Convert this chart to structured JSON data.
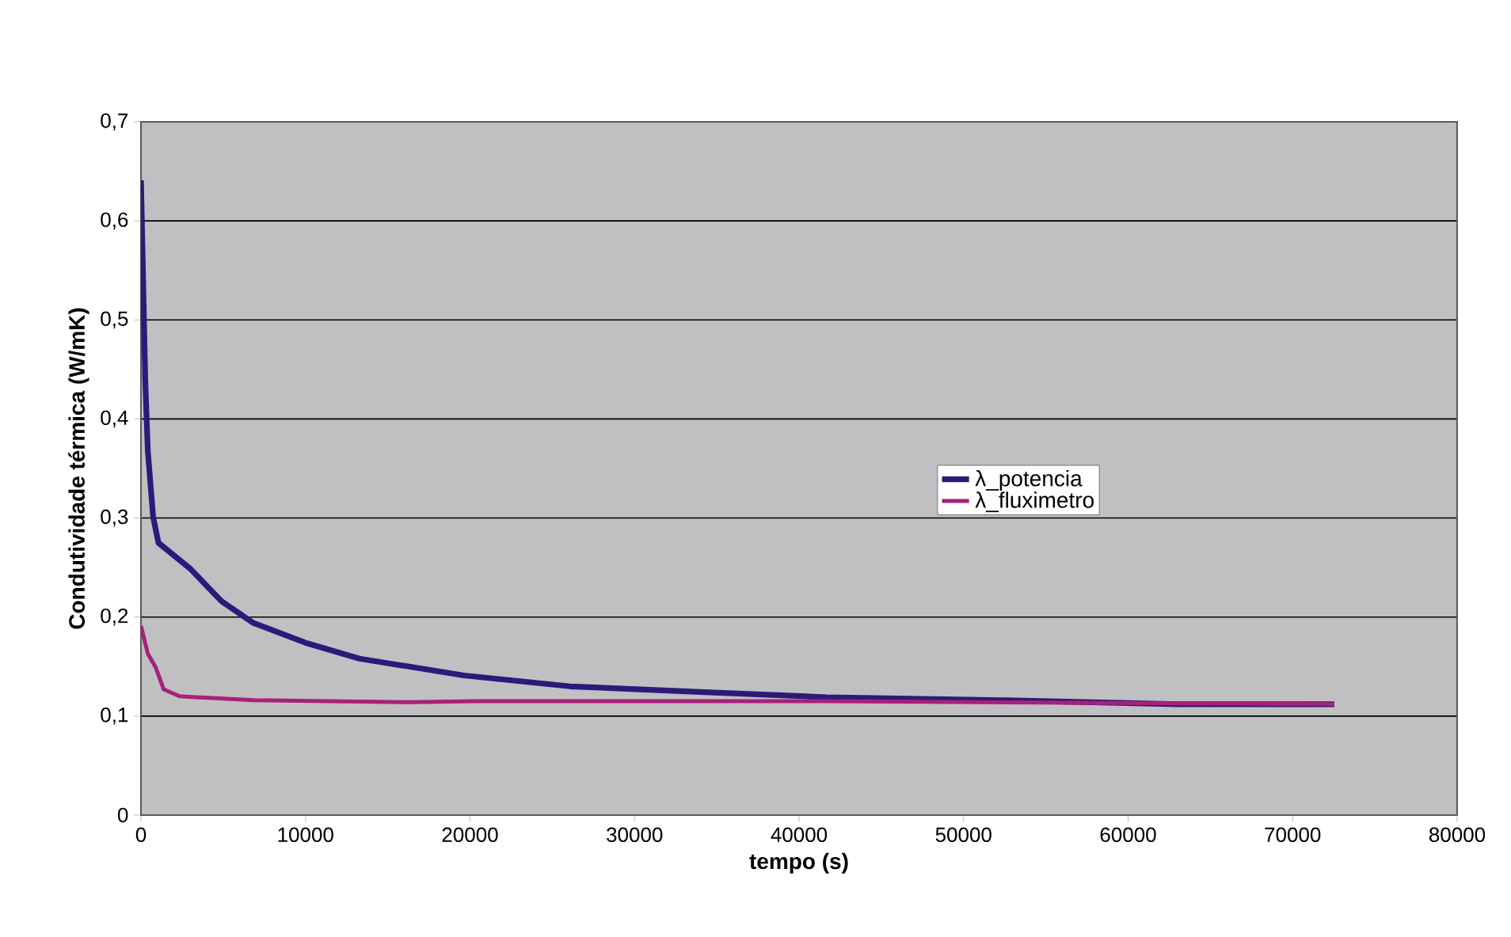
{
  "chart_data": {
    "type": "line",
    "xlabel": "tempo (s)",
    "ylabel": "Condutividade térmica (W/mK)",
    "xlim": [
      0,
      80000
    ],
    "xticks": [
      0,
      10000,
      20000,
      30000,
      40000,
      50000,
      60000,
      70000,
      80000
    ],
    "ylim": [
      0,
      0.7
    ],
    "yticks": [
      0,
      {
        "value": 0.1,
        "label": "0,1"
      },
      {
        "value": 0.2,
        "label": "0,2"
      },
      {
        "value": 0.3,
        "label": "0,3"
      },
      {
        "value": 0.4,
        "label": "0,4"
      },
      {
        "value": 0.5,
        "label": "0,5"
      },
      {
        "value": 0.6,
        "label": "0,6"
      },
      {
        "value": 0.7,
        "label": "0,7"
      }
    ],
    "grid": "y",
    "legend": "right",
    "marker": "none",
    "line_style": "solid",
    "series": [
      {
        "name": "λ_potencia",
        "color": "#2b1a7a",
        "x": [
          0,
          260,
          415,
          740,
          1060,
          2980,
          4900,
          6830,
          10000,
          13280,
          19630,
          26080,
          34550,
          41680,
          52360,
          63050,
          72530
        ],
        "values": [
          0.641,
          0.439,
          0.368,
          0.301,
          0.275,
          0.249,
          0.216,
          0.194,
          0.174,
          0.158,
          0.141,
          0.13,
          0.124,
          0.119,
          0.116,
          0.112,
          0.112
        ]
      },
      {
        "name": "λ_fluximetro",
        "color": "#a8207a",
        "x": [
          0,
          415,
          900,
          1380,
          2340,
          6830,
          16460,
          20300,
          41680,
          72530
        ],
        "values": [
          0.191,
          0.163,
          0.149,
          0.127,
          0.12,
          0.116,
          0.114,
          0.115,
          0.115,
          0.112
        ]
      }
    ]
  }
}
